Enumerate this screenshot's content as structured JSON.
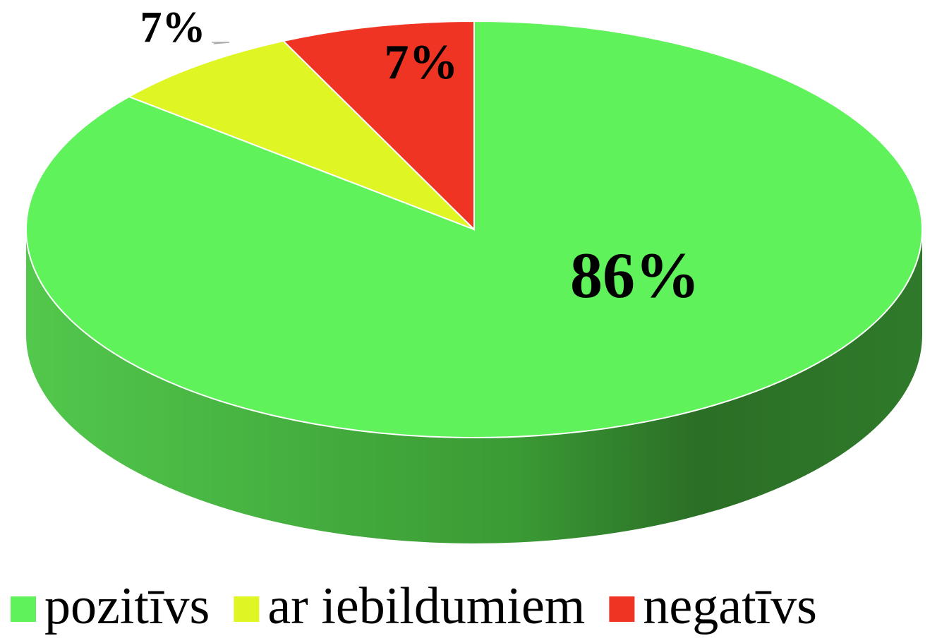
{
  "chart_data": {
    "type": "pie",
    "categories": [
      "pozitīvs",
      "ar iebildumiem",
      "negatīvs"
    ],
    "values": [
      86,
      7,
      7
    ],
    "value_labels": [
      "86%",
      "7%",
      "7%"
    ],
    "colors": [
      "#5ff25a",
      "#e0f524",
      "#f03424"
    ],
    "legend": "bottom"
  }
}
